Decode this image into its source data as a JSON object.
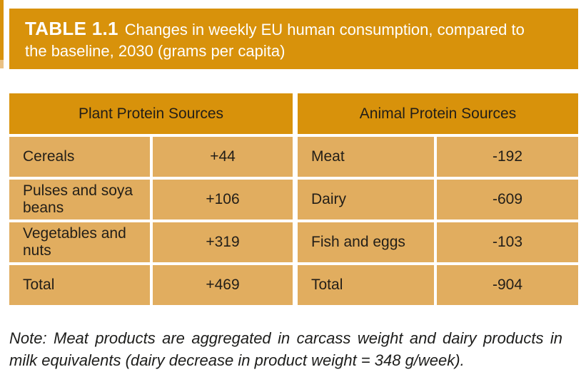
{
  "banner": {
    "label": "TABLE 1.1",
    "caption": "Changes in weekly EU human consumption, compared to the baseline, 2030 (grams per capita)"
  },
  "table": {
    "groups": [
      {
        "header": "Plant Protein Sources",
        "rows": [
          {
            "label": "Cereals",
            "value": "+44"
          },
          {
            "label": "Pulses and soya beans",
            "value": "+106"
          },
          {
            "label": "Vegetables and nuts",
            "value": "+319"
          },
          {
            "label": "Total",
            "value": "+469"
          }
        ]
      },
      {
        "header": "Animal Protein Sources",
        "rows": [
          {
            "label": "Meat",
            "value": "-192"
          },
          {
            "label": "Dairy",
            "value": "-609"
          },
          {
            "label": "Fish and eggs",
            "value": "-103"
          },
          {
            "label": "Total",
            "value": "-904"
          }
        ]
      }
    ]
  },
  "note": "Note: Meat products are aggregated in carcass weight and dairy products in milk equivalents (dairy decrease in product weight = 348 g/week).",
  "colors": {
    "banner_orange": "#D8920B",
    "cell_orange": "#E1AD5F",
    "text_dark": "#221E18",
    "banner_text": "#FFFFFF",
    "gutter_white": "#FFFFFF"
  }
}
